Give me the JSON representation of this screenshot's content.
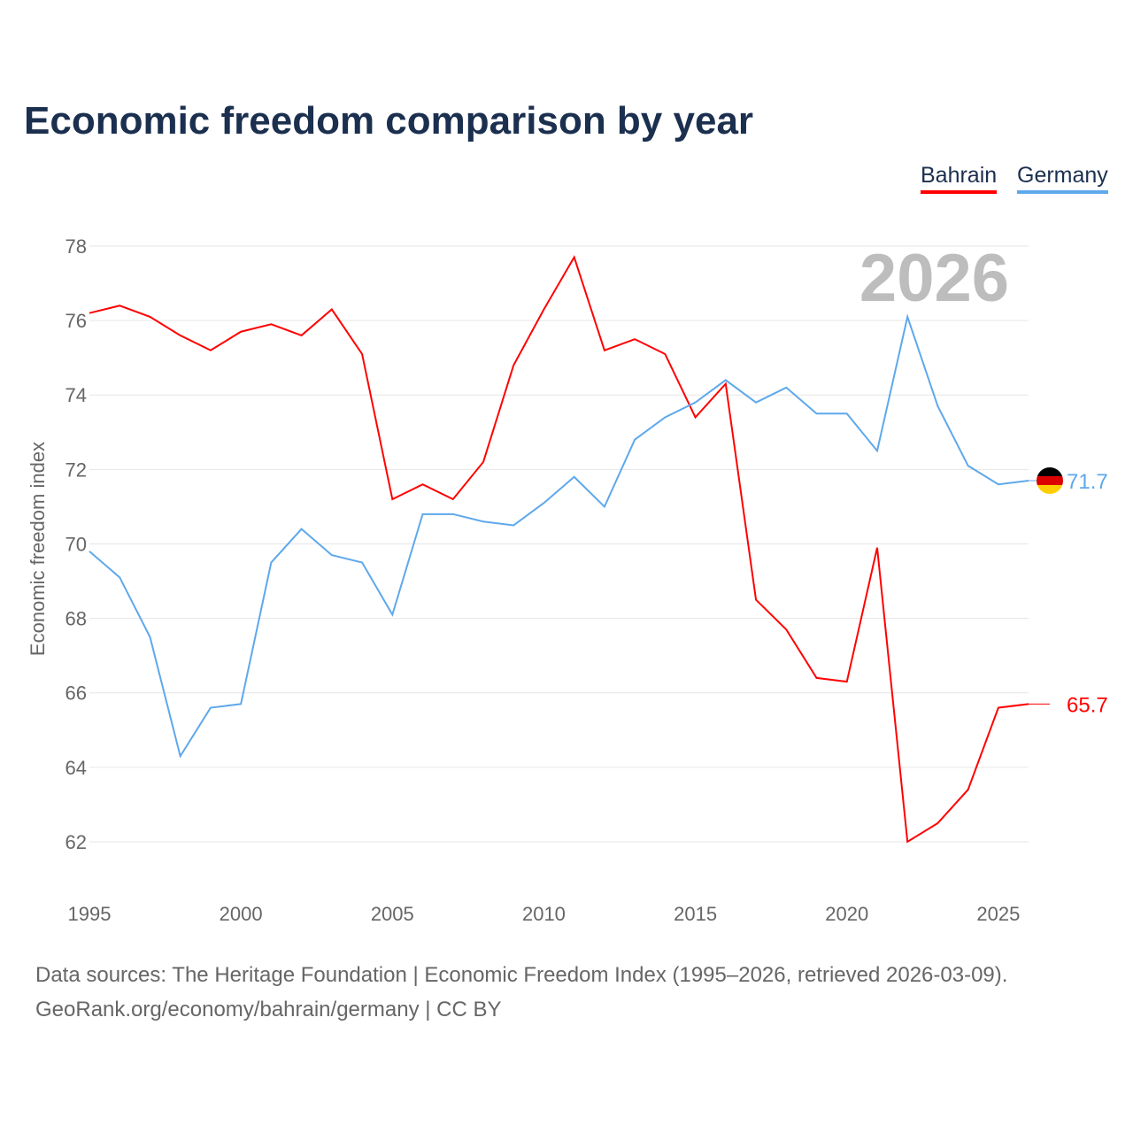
{
  "title": "Economic freedom comparison by year",
  "footer": {
    "line1": "Data sources: The Heritage Foundation | Economic Freedom Index (1995–2026, retrieved 2026-03-09).",
    "line2": "GeoRank.org/economy/bahrain/germany | CC BY"
  },
  "chart_data": {
    "type": "line",
    "title": "Economic freedom comparison by year",
    "xlabel": "",
    "ylabel": "Economic freedom index",
    "year_label": "2026",
    "xlim": [
      1995,
      2026
    ],
    "ylim": [
      61,
      79
    ],
    "xticks": [
      1995,
      2000,
      2005,
      2010,
      2015,
      2020,
      2025
    ],
    "yticks": [
      62,
      64,
      66,
      68,
      70,
      72,
      74,
      76,
      78
    ],
    "grid": true,
    "legend_placement": "top-right",
    "x": [
      1995,
      1996,
      1997,
      1998,
      1999,
      2000,
      2001,
      2002,
      2003,
      2004,
      2005,
      2006,
      2007,
      2008,
      2009,
      2010,
      2011,
      2012,
      2013,
      2014,
      2015,
      2016,
      2017,
      2018,
      2019,
      2020,
      2021,
      2022,
      2023,
      2024,
      2025,
      2026
    ],
    "series": [
      {
        "name": "Bahrain",
        "color": "#ff0000",
        "end_label": "65.7",
        "values": [
          76.2,
          76.4,
          76.1,
          75.6,
          75.2,
          75.7,
          75.9,
          75.6,
          76.3,
          75.1,
          71.2,
          71.6,
          71.2,
          72.2,
          74.8,
          76.3,
          77.7,
          75.2,
          75.5,
          75.1,
          73.4,
          74.3,
          68.5,
          67.7,
          66.4,
          66.3,
          69.9,
          62.0,
          62.5,
          63.4,
          65.6,
          65.7
        ]
      },
      {
        "name": "Germany",
        "color": "#5ea8ec",
        "end_label": "71.7",
        "values": [
          69.8,
          69.1,
          67.5,
          64.3,
          65.6,
          65.7,
          69.5,
          70.4,
          69.7,
          69.5,
          68.1,
          70.8,
          70.8,
          70.6,
          70.5,
          71.1,
          71.8,
          71.0,
          72.8,
          73.4,
          73.8,
          74.4,
          73.8,
          74.2,
          73.5,
          73.5,
          72.5,
          76.1,
          73.7,
          72.1,
          71.6,
          71.7
        ]
      }
    ]
  }
}
